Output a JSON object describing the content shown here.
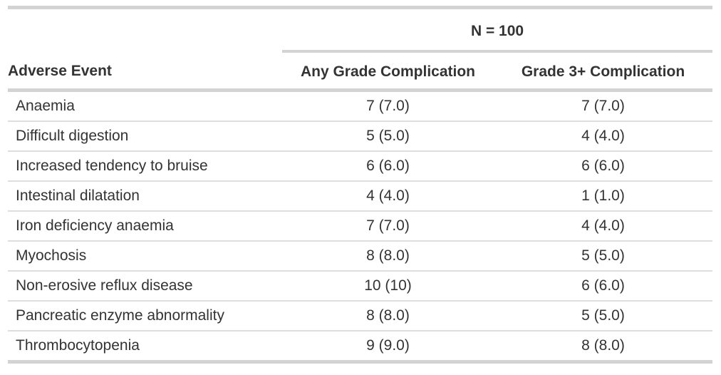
{
  "colors": {
    "background": "#ffffff",
    "text": "#333333",
    "border_heavy": "#d3d3d3",
    "border_light": "#dedede"
  },
  "table": {
    "spanner_label": "N = 100",
    "columns": {
      "event": "Adverse Event",
      "any_grade": "Any Grade Complication",
      "grade3plus": "Grade 3+ Complication"
    },
    "rows": [
      {
        "event": "Anaemia",
        "any_grade": "7 (7.0)",
        "grade3plus": "7 (7.0)"
      },
      {
        "event": "Difficult digestion",
        "any_grade": "5 (5.0)",
        "grade3plus": "4 (4.0)"
      },
      {
        "event": "Increased tendency to bruise",
        "any_grade": "6 (6.0)",
        "grade3plus": "6 (6.0)"
      },
      {
        "event": "Intestinal dilatation",
        "any_grade": "4 (4.0)",
        "grade3plus": "1 (1.0)"
      },
      {
        "event": "Iron deficiency anaemia",
        "any_grade": "7 (7.0)",
        "grade3plus": "4 (4.0)"
      },
      {
        "event": "Myochosis",
        "any_grade": "8 (8.0)",
        "grade3plus": "5 (5.0)"
      },
      {
        "event": "Non-erosive reflux disease",
        "any_grade": "10 (10)",
        "grade3plus": "6 (6.0)"
      },
      {
        "event": "Pancreatic enzyme abnormality",
        "any_grade": "8 (8.0)",
        "grade3plus": "5 (5.0)"
      },
      {
        "event": "Thrombocytopenia",
        "any_grade": "9 (9.0)",
        "grade3plus": "8 (8.0)"
      }
    ]
  },
  "chart_data": {
    "type": "table",
    "title": "",
    "spanner": "N = 100",
    "columns": [
      "Adverse Event",
      "Any Grade Complication",
      "Grade 3+ Complication"
    ],
    "rows": [
      [
        "Anaemia",
        "7 (7.0)",
        "7 (7.0)"
      ],
      [
        "Difficult digestion",
        "5 (5.0)",
        "4 (4.0)"
      ],
      [
        "Increased tendency to bruise",
        "6 (6.0)",
        "6 (6.0)"
      ],
      [
        "Intestinal dilatation",
        "4 (4.0)",
        "1 (1.0)"
      ],
      [
        "Iron deficiency anaemia",
        "7 (7.0)",
        "4 (4.0)"
      ],
      [
        "Myochosis",
        "8 (8.0)",
        "5 (5.0)"
      ],
      [
        "Non-erosive reflux disease",
        "10 (10)",
        "6 (6.0)"
      ],
      [
        "Pancreatic enzyme abnormality",
        "8 (8.0)",
        "5 (5.0)"
      ],
      [
        "Thrombocytopenia",
        "9 (9.0)",
        "8 (8.0)"
      ]
    ],
    "notes": "Counts shown as n (%). Column values centered; first column left-aligned."
  }
}
